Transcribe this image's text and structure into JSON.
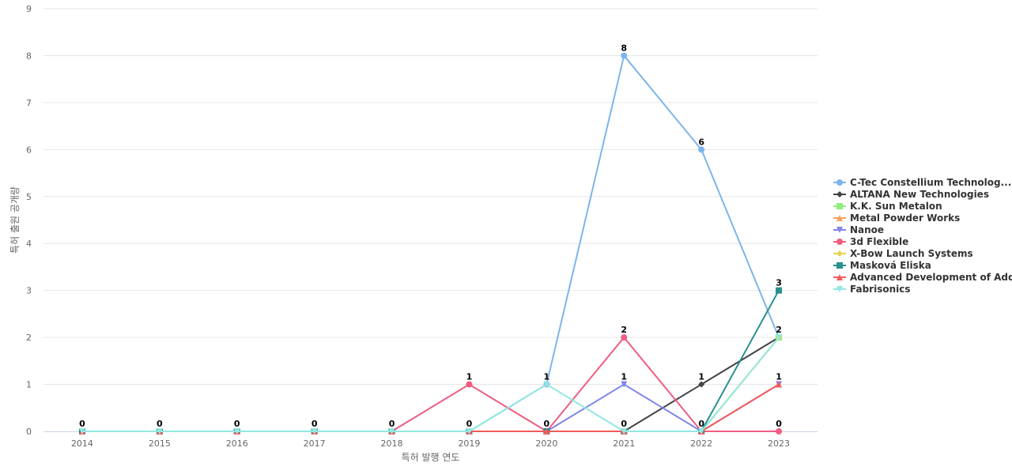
{
  "chart_data": {
    "type": "line",
    "title": "",
    "xlabel": "특허 발행 연도",
    "ylabel": "특허 출원 공개량",
    "categories": [
      "2014",
      "2015",
      "2016",
      "2017",
      "2018",
      "2019",
      "2020",
      "2021",
      "2022",
      "2023"
    ],
    "ylim": [
      0,
      9
    ],
    "yticks": [
      0,
      1,
      2,
      3,
      4,
      5,
      6,
      7,
      8,
      9
    ],
    "grid": true,
    "legend_position": "right",
    "series": [
      {
        "name": "C-Tec Constellium Technolog...",
        "color": "#7cb5ec",
        "marker": "circle",
        "values": [
          0,
          0,
          0,
          0,
          0,
          0,
          1,
          8,
          6,
          2
        ]
      },
      {
        "name": "ALTANA New Technologies",
        "color": "#434348",
        "marker": "diamond",
        "values": [
          0,
          0,
          0,
          0,
          0,
          0,
          0,
          0,
          1,
          2
        ]
      },
      {
        "name": "K.K. Sun Metalon",
        "color": "#90ed7d",
        "marker": "square",
        "values": [
          0,
          0,
          0,
          0,
          0,
          0,
          0,
          0,
          0,
          2
        ]
      },
      {
        "name": "Metal Powder Works",
        "color": "#f7a35c",
        "marker": "triangle",
        "values": [
          0,
          0,
          0,
          0,
          0,
          0,
          0,
          0,
          0,
          1
        ]
      },
      {
        "name": "Nanoe",
        "color": "#8085e9",
        "marker": "triangle-down",
        "values": [
          0,
          0,
          0,
          0,
          0,
          0,
          0,
          1,
          0,
          1
        ]
      },
      {
        "name": "3d Flexible",
        "color": "#f15c80",
        "marker": "circle",
        "values": [
          0,
          0,
          0,
          0,
          0,
          1,
          0,
          2,
          0,
          0
        ]
      },
      {
        "name": "X-Bow Launch Systems",
        "color": "#e4d354",
        "marker": "diamond",
        "values": [
          0,
          0,
          0,
          0,
          0,
          0,
          0,
          0,
          0,
          2
        ]
      },
      {
        "name": "Masková Eliska",
        "color": "#2b908f",
        "marker": "square",
        "values": [
          0,
          0,
          0,
          0,
          0,
          0,
          0,
          0,
          0,
          3
        ]
      },
      {
        "name": "Advanced Development of Add...",
        "color": "#f45b5b",
        "marker": "triangle",
        "values": [
          0,
          0,
          0,
          0,
          0,
          0,
          0,
          0,
          0,
          1
        ]
      },
      {
        "name": "Fabrisonics",
        "color": "#91e8e1",
        "marker": "triangle-down",
        "values": [
          0,
          0,
          0,
          0,
          0,
          0,
          1,
          0,
          0,
          2
        ]
      }
    ],
    "data_labels": [
      {
        "x": "2014",
        "y": 0,
        "text": "0"
      },
      {
        "x": "2015",
        "y": 0,
        "text": "0"
      },
      {
        "x": "2016",
        "y": 0,
        "text": "0"
      },
      {
        "x": "2017",
        "y": 0,
        "text": "0"
      },
      {
        "x": "2018",
        "y": 0,
        "text": "0"
      },
      {
        "x": "2019",
        "y": 1,
        "text": "1"
      },
      {
        "x": "2019",
        "y": 0,
        "text": "0"
      },
      {
        "x": "2020",
        "y": 1,
        "text": "1"
      },
      {
        "x": "2020",
        "y": 0,
        "text": "0"
      },
      {
        "x": "2021",
        "y": 8,
        "text": "8"
      },
      {
        "x": "2021",
        "y": 2,
        "text": "2"
      },
      {
        "x": "2021",
        "y": 1,
        "text": "1"
      },
      {
        "x": "2021",
        "y": 0,
        "text": "0"
      },
      {
        "x": "2022",
        "y": 6,
        "text": "6"
      },
      {
        "x": "2022",
        "y": 1,
        "text": "1"
      },
      {
        "x": "2022",
        "y": 0,
        "text": "0"
      },
      {
        "x": "2023",
        "y": 3,
        "text": "3"
      },
      {
        "x": "2023",
        "y": 2,
        "text": "2"
      },
      {
        "x": "2023",
        "y": 1,
        "text": "1"
      },
      {
        "x": "2023",
        "y": 0,
        "text": "0"
      }
    ]
  }
}
